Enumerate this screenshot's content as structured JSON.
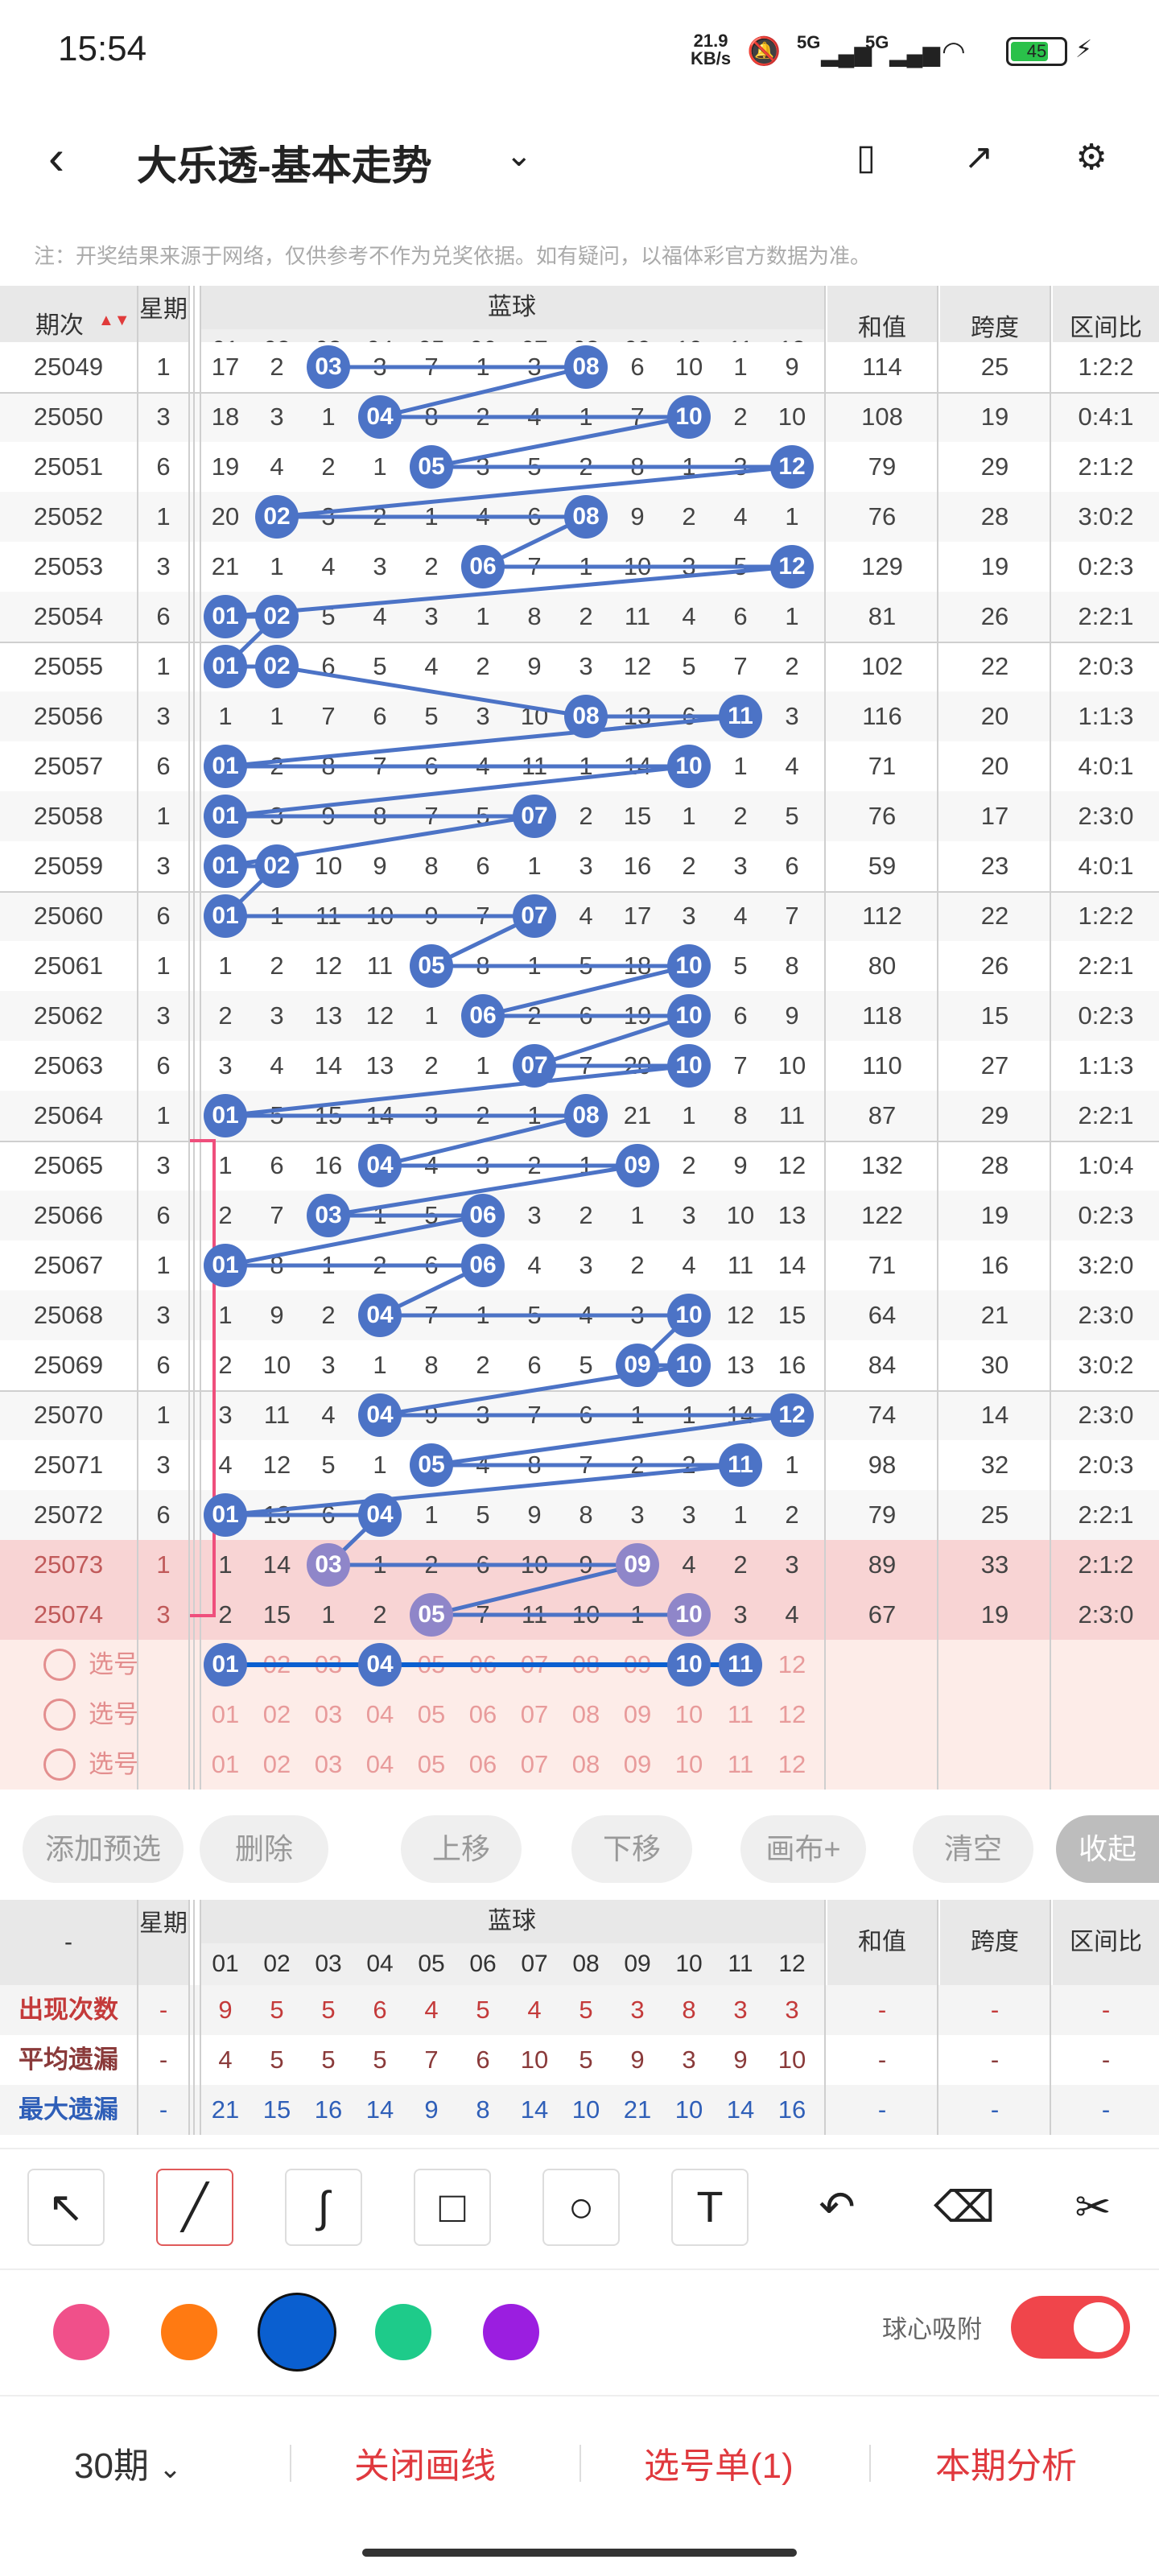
{
  "status": {
    "time": "15:54",
    "netspeed_top": "21.9",
    "netspeed_bottom": "KB/s",
    "net1": "5G",
    "net2": "5G",
    "battery": "45"
  },
  "nav": {
    "title": "大乐透-基本走势"
  },
  "notice": "注：开奖结果来源于网络，仅供参考不作为兑奖依据。如有疑问，以福体彩官方数据为准。",
  "header": {
    "period": "期次",
    "week": "星期",
    "blue": "蓝球",
    "sum": "和值",
    "span": "跨度",
    "ratio": "区间比",
    "numbers": [
      "01",
      "02",
      "03",
      "04",
      "05",
      "06",
      "07",
      "08",
      "09",
      "10",
      "11",
      "12"
    ]
  },
  "rows": [
    {
      "period": "25049",
      "week": "1",
      "cells": [
        "17",
        "2",
        "03",
        "3",
        "7",
        "1",
        "3",
        "08",
        "6",
        "10",
        "1",
        "9"
      ],
      "balls": [
        3,
        8
      ],
      "sum": "114",
      "span": "25",
      "ratio": "1:2:2"
    },
    {
      "period": "25050",
      "week": "3",
      "cells": [
        "18",
        "3",
        "1",
        "04",
        "8",
        "2",
        "4",
        "1",
        "7",
        "10",
        "2",
        "10"
      ],
      "balls": [
        4,
        10
      ],
      "sum": "108",
      "span": "19",
      "ratio": "0:4:1"
    },
    {
      "period": "25051",
      "week": "6",
      "cells": [
        "19",
        "4",
        "2",
        "1",
        "05",
        "3",
        "5",
        "2",
        "8",
        "1",
        "3",
        "12"
      ],
      "balls": [
        5,
        12
      ],
      "sum": "79",
      "span": "29",
      "ratio": "2:1:2"
    },
    {
      "period": "25052",
      "week": "1",
      "cells": [
        "20",
        "02",
        "3",
        "2",
        "1",
        "4",
        "6",
        "08",
        "9",
        "2",
        "4",
        "1"
      ],
      "balls": [
        2,
        8
      ],
      "sum": "76",
      "span": "28",
      "ratio": "3:0:2"
    },
    {
      "period": "25053",
      "week": "3",
      "cells": [
        "21",
        "1",
        "4",
        "3",
        "2",
        "06",
        "7",
        "1",
        "10",
        "3",
        "5",
        "12"
      ],
      "balls": [
        6,
        12
      ],
      "sum": "129",
      "span": "19",
      "ratio": "0:2:3"
    },
    {
      "period": "25054",
      "week": "6",
      "cells": [
        "01",
        "02",
        "5",
        "4",
        "3",
        "1",
        "8",
        "2",
        "11",
        "4",
        "6",
        "1"
      ],
      "balls": [
        1,
        2
      ],
      "sum": "81",
      "span": "26",
      "ratio": "2:2:1"
    },
    {
      "period": "25055",
      "week": "1",
      "cells": [
        "01",
        "02",
        "6",
        "5",
        "4",
        "2",
        "9",
        "3",
        "12",
        "5",
        "7",
        "2"
      ],
      "balls": [
        1,
        2
      ],
      "sum": "102",
      "span": "22",
      "ratio": "2:0:3"
    },
    {
      "period": "25056",
      "week": "3",
      "cells": [
        "1",
        "1",
        "7",
        "6",
        "5",
        "3",
        "10",
        "08",
        "13",
        "6",
        "11",
        "3"
      ],
      "balls": [
        8,
        11
      ],
      "sum": "116",
      "span": "20",
      "ratio": "1:1:3"
    },
    {
      "period": "25057",
      "week": "6",
      "cells": [
        "01",
        "2",
        "8",
        "7",
        "6",
        "4",
        "11",
        "1",
        "14",
        "10",
        "1",
        "4"
      ],
      "balls": [
        1,
        10
      ],
      "sum": "71",
      "span": "20",
      "ratio": "4:0:1"
    },
    {
      "period": "25058",
      "week": "1",
      "cells": [
        "01",
        "3",
        "9",
        "8",
        "7",
        "5",
        "07",
        "2",
        "15",
        "1",
        "2",
        "5"
      ],
      "balls": [
        1,
        7
      ],
      "sum": "76",
      "span": "17",
      "ratio": "2:3:0"
    },
    {
      "period": "25059",
      "week": "3",
      "cells": [
        "01",
        "02",
        "10",
        "9",
        "8",
        "6",
        "1",
        "3",
        "16",
        "2",
        "3",
        "6"
      ],
      "balls": [
        1,
        2
      ],
      "sum": "59",
      "span": "23",
      "ratio": "4:0:1"
    },
    {
      "period": "25060",
      "week": "6",
      "cells": [
        "01",
        "1",
        "11",
        "10",
        "9",
        "7",
        "07",
        "4",
        "17",
        "3",
        "4",
        "7"
      ],
      "balls": [
        1,
        7
      ],
      "sum": "112",
      "span": "22",
      "ratio": "1:2:2"
    },
    {
      "period": "25061",
      "week": "1",
      "cells": [
        "1",
        "2",
        "12",
        "11",
        "05",
        "8",
        "1",
        "5",
        "18",
        "10",
        "5",
        "8"
      ],
      "balls": [
        5,
        10
      ],
      "sum": "80",
      "span": "26",
      "ratio": "2:2:1"
    },
    {
      "period": "25062",
      "week": "3",
      "cells": [
        "2",
        "3",
        "13",
        "12",
        "1",
        "06",
        "2",
        "6",
        "19",
        "10",
        "6",
        "9"
      ],
      "balls": [
        6,
        10
      ],
      "sum": "118",
      "span": "15",
      "ratio": "0:2:3"
    },
    {
      "period": "25063",
      "week": "6",
      "cells": [
        "3",
        "4",
        "14",
        "13",
        "2",
        "1",
        "07",
        "7",
        "20",
        "10",
        "7",
        "10"
      ],
      "balls": [
        7,
        10
      ],
      "sum": "110",
      "span": "27",
      "ratio": "1:1:3"
    },
    {
      "period": "25064",
      "week": "1",
      "cells": [
        "01",
        "5",
        "15",
        "14",
        "3",
        "2",
        "1",
        "08",
        "21",
        "1",
        "8",
        "11"
      ],
      "balls": [
        1,
        8
      ],
      "sum": "87",
      "span": "29",
      "ratio": "2:2:1"
    },
    {
      "period": "25065",
      "week": "3",
      "cells": [
        "1",
        "6",
        "16",
        "04",
        "4",
        "3",
        "2",
        "1",
        "09",
        "2",
        "9",
        "12"
      ],
      "balls": [
        4,
        9
      ],
      "sum": "132",
      "span": "28",
      "ratio": "1:0:4"
    },
    {
      "period": "25066",
      "week": "6",
      "cells": [
        "2",
        "7",
        "03",
        "1",
        "5",
        "06",
        "3",
        "2",
        "1",
        "3",
        "10",
        "13"
      ],
      "balls": [
        3,
        6
      ],
      "sum": "122",
      "span": "19",
      "ratio": "0:2:3"
    },
    {
      "period": "25067",
      "week": "1",
      "cells": [
        "01",
        "8",
        "1",
        "2",
        "6",
        "06",
        "4",
        "3",
        "2",
        "4",
        "11",
        "14"
      ],
      "balls": [
        1,
        6
      ],
      "sum": "71",
      "span": "16",
      "ratio": "3:2:0"
    },
    {
      "period": "25068",
      "week": "3",
      "cells": [
        "1",
        "9",
        "2",
        "04",
        "7",
        "1",
        "5",
        "4",
        "3",
        "10",
        "12",
        "15"
      ],
      "balls": [
        4,
        10
      ],
      "sum": "64",
      "span": "21",
      "ratio": "2:3:0"
    },
    {
      "period": "25069",
      "week": "6",
      "cells": [
        "2",
        "10",
        "3",
        "1",
        "8",
        "2",
        "6",
        "5",
        "09",
        "10",
        "13",
        "16"
      ],
      "balls": [
        9,
        10
      ],
      "sum": "84",
      "span": "30",
      "ratio": "3:0:2"
    },
    {
      "period": "25070",
      "week": "1",
      "cells": [
        "3",
        "11",
        "4",
        "04",
        "9",
        "3",
        "7",
        "6",
        "1",
        "1",
        "14",
        "12"
      ],
      "balls": [
        4,
        12
      ],
      "sum": "74",
      "span": "14",
      "ratio": "2:3:0"
    },
    {
      "period": "25071",
      "week": "3",
      "cells": [
        "4",
        "12",
        "5",
        "1",
        "05",
        "4",
        "8",
        "7",
        "2",
        "2",
        "11",
        "1"
      ],
      "balls": [
        5,
        11
      ],
      "sum": "98",
      "span": "32",
      "ratio": "2:0:3"
    },
    {
      "period": "25072",
      "week": "6",
      "cells": [
        "01",
        "13",
        "6",
        "04",
        "1",
        "5",
        "9",
        "8",
        "3",
        "3",
        "1",
        "2"
      ],
      "balls": [
        1,
        4
      ],
      "sum": "79",
      "span": "25",
      "ratio": "2:2:1"
    },
    {
      "period": "25073",
      "week": "1",
      "cells": [
        "1",
        "14",
        "03",
        "1",
        "2",
        "6",
        "10",
        "9",
        "09",
        "4",
        "2",
        "3"
      ],
      "balls": [
        3,
        9
      ],
      "sum": "89",
      "span": "33",
      "ratio": "2:1:2"
    },
    {
      "period": "25074",
      "week": "3",
      "cells": [
        "2",
        "15",
        "1",
        "2",
        "05",
        "7",
        "11",
        "10",
        "1",
        "10",
        "3",
        "4"
      ],
      "balls": [
        5,
        10
      ],
      "sum": "67",
      "span": "19",
      "ratio": "2:3:0"
    }
  ],
  "picks": {
    "label": "选号",
    "selected": [
      1,
      4,
      10,
      11
    ]
  },
  "buttons": {
    "add": "添加预选",
    "delete": "删除",
    "up": "上移",
    "down": "下移",
    "canvas": "画布+",
    "clear": "清空",
    "collapse": "收起"
  },
  "stats": {
    "dash": "-",
    "rows": [
      {
        "label": "出现次数",
        "color": "#c43a3a",
        "values": [
          "9",
          "5",
          "5",
          "6",
          "4",
          "5",
          "4",
          "5",
          "3",
          "8",
          "3",
          "3"
        ]
      },
      {
        "label": "平均遗漏",
        "color": "#8a3a3a",
        "values": [
          "4",
          "5",
          "5",
          "5",
          "7",
          "6",
          "10",
          "5",
          "9",
          "3",
          "9",
          "10"
        ]
      },
      {
        "label": "最大遗漏",
        "color": "#2f5fb8",
        "values": [
          "21",
          "15",
          "16",
          "14",
          "9",
          "8",
          "14",
          "10",
          "21",
          "10",
          "14",
          "16"
        ]
      }
    ]
  },
  "tools": [
    "arrow-tool",
    "line-tool",
    "curve-tool",
    "rect-tool",
    "circle-tool",
    "text-tool",
    "undo-tool",
    "eraser-tool",
    "clear-tool"
  ],
  "colors": [
    "#f0508a",
    "#ff7a12",
    "#0a5fd0",
    "#1ecb8a",
    "#9b1ee0"
  ],
  "snap_label": "球心吸附",
  "bottom": {
    "periods": "30期",
    "close": "关闭画线",
    "list": "选号单(1)",
    "analysis": "本期分析"
  }
}
